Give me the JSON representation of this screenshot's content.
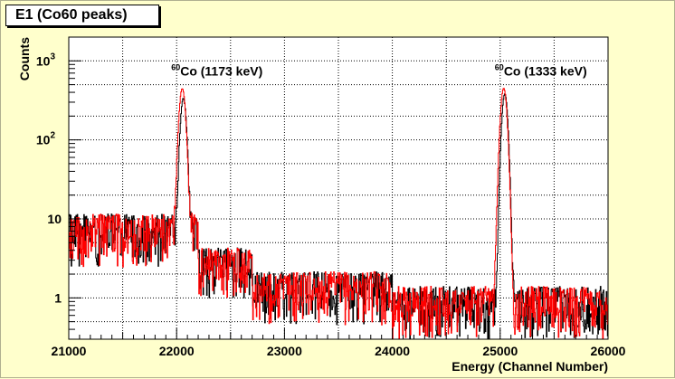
{
  "title": "E1 (Co60 peaks)",
  "chart_data": {
    "type": "line",
    "xlabel": "Energy (Channel Number)",
    "ylabel": "Counts",
    "xlim": [
      21000,
      26000
    ],
    "ylog": true,
    "ylim": [
      0.3,
      2000
    ],
    "grid": true,
    "x_ticks": [
      "21000",
      "22000",
      "23000",
      "24000",
      "25000",
      "26000"
    ],
    "y_ticks": [
      {
        "value": 1,
        "base": "1",
        "exp": ""
      },
      {
        "value": 10,
        "base": "10",
        "exp": ""
      },
      {
        "value": 100,
        "base": "10",
        "exp": "2"
      },
      {
        "value": 1000,
        "base": "10",
        "exp": "3"
      }
    ],
    "annotations": [
      {
        "sup": "60",
        "text": "Co (1173 keV)",
        "x": 22000,
        "y": 600
      },
      {
        "sup": "60",
        "text": "Co (1333 keV)",
        "x": 25000,
        "y": 600
      }
    ],
    "series": [
      {
        "color": "#000000",
        "peaks": [
          {
            "center": 22060,
            "height": 330,
            "sigma": 22
          },
          {
            "center": 25040,
            "height": 380,
            "sigma": 22
          }
        ]
      },
      {
        "color": "#ff0000",
        "peaks": [
          {
            "center": 22050,
            "height": 440,
            "sigma": 24
          },
          {
            "center": 25030,
            "height": 450,
            "sigma": 24
          }
        ]
      }
    ]
  }
}
